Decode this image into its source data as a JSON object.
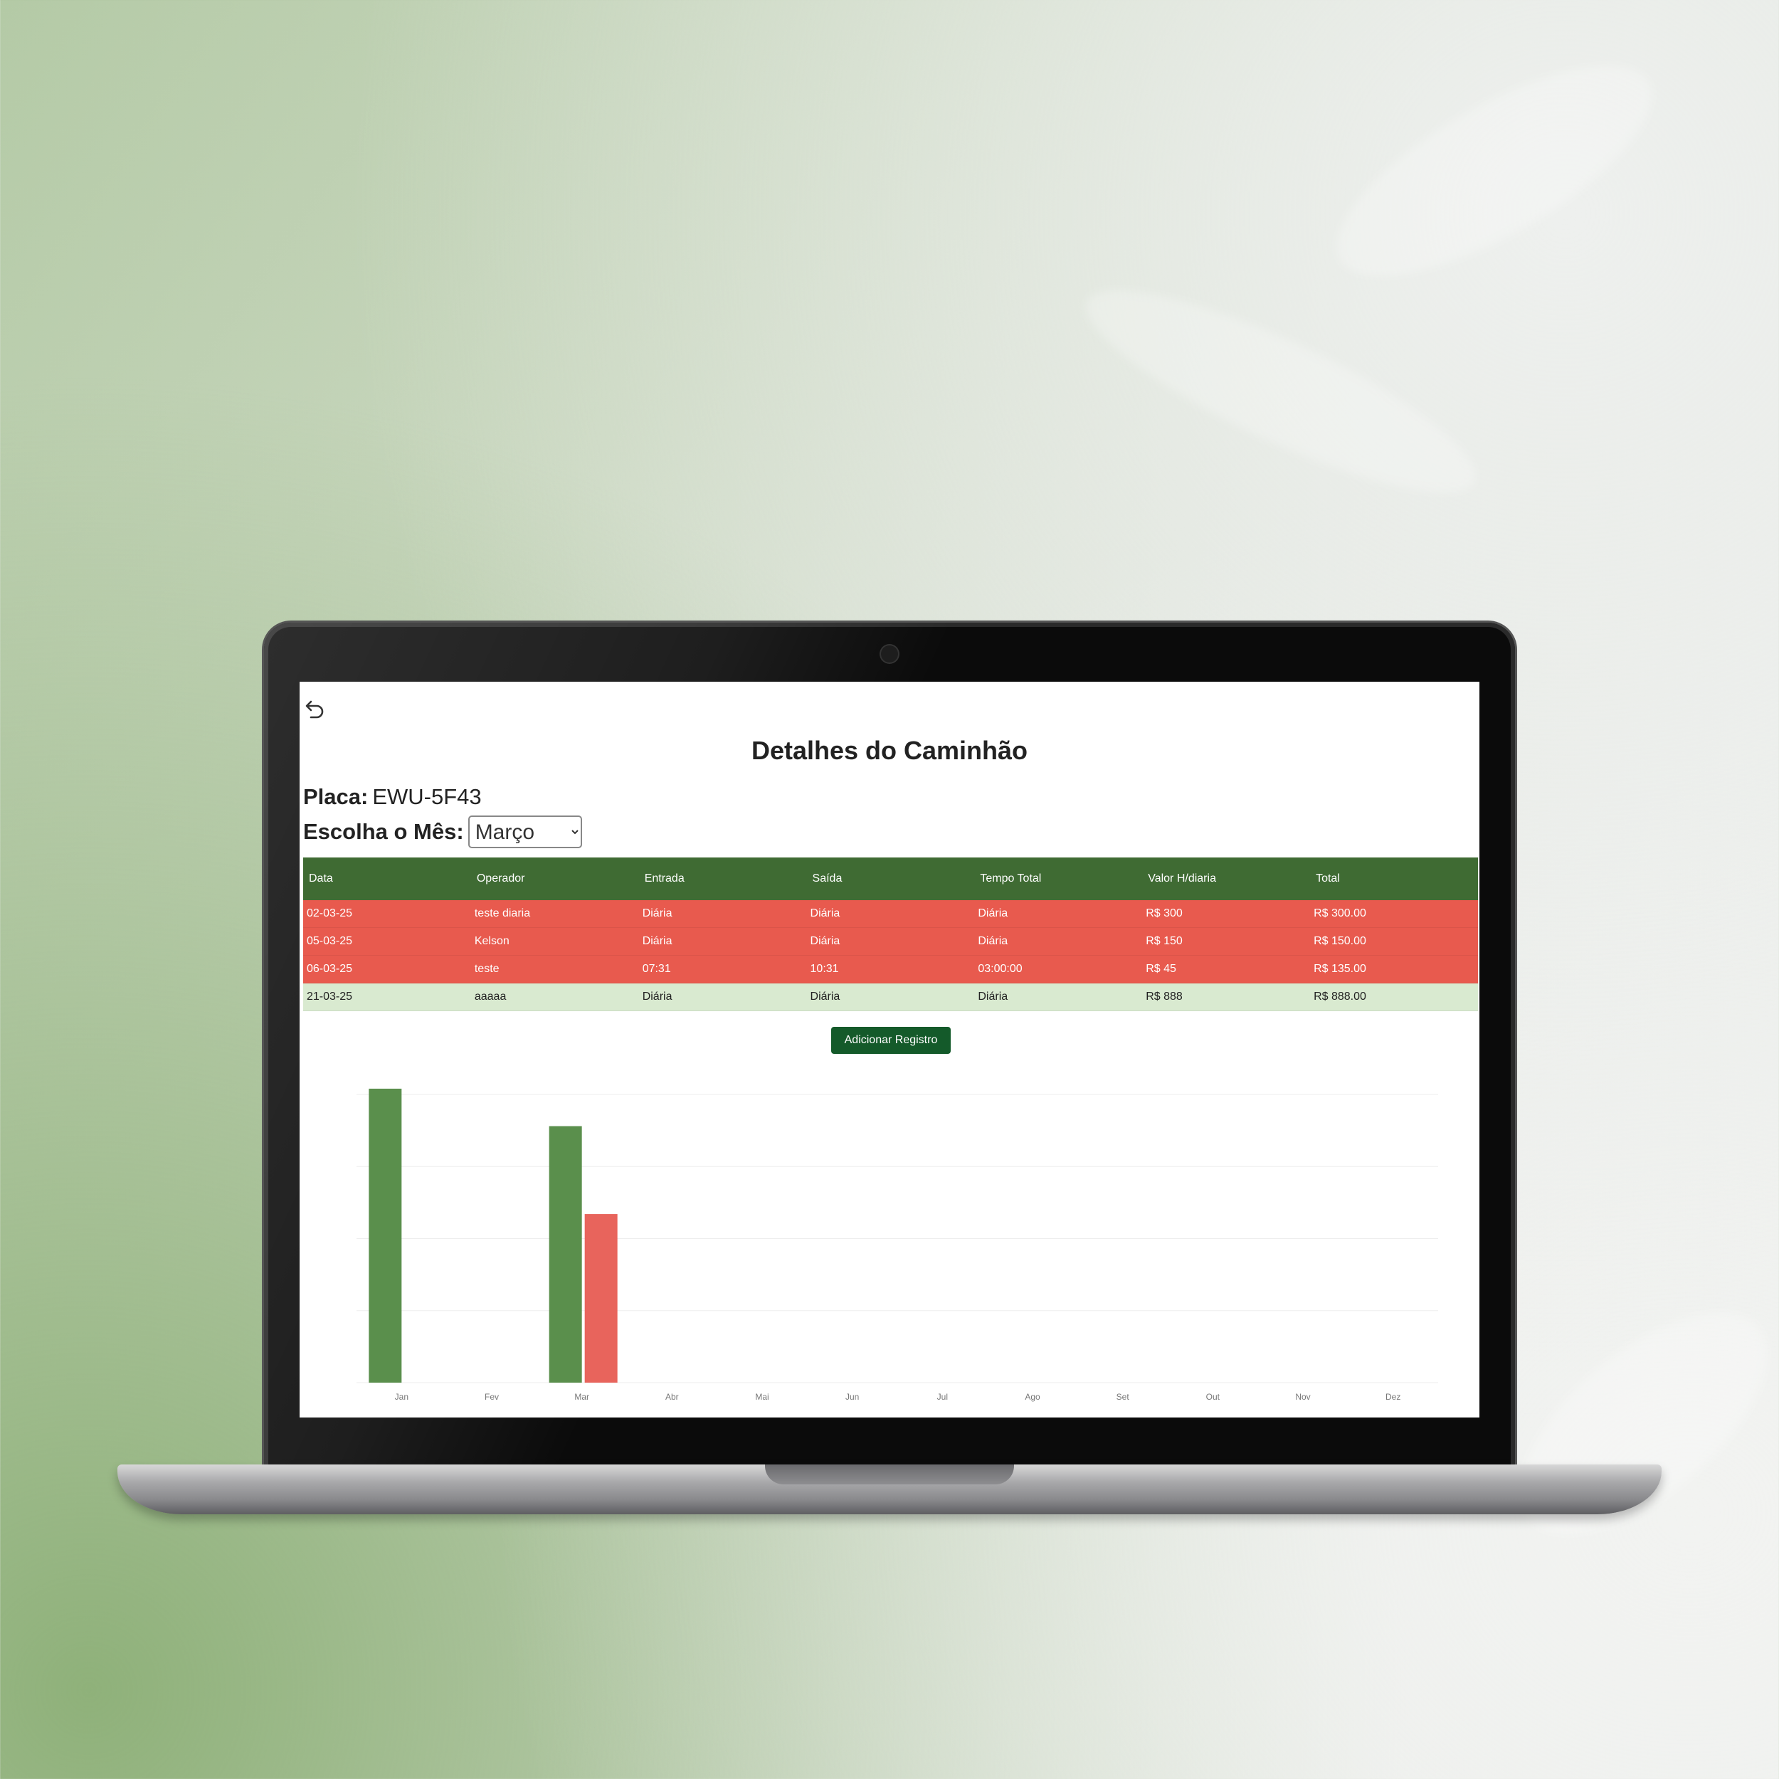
{
  "page": {
    "title": "Detalhes do Caminhão"
  },
  "placa": {
    "label": "Placa:",
    "value": "EWU-5F43"
  },
  "month_picker": {
    "label": "Escolha o Mês:",
    "selected": "Março"
  },
  "table": {
    "columns": [
      "Data",
      "Operador",
      "Entrada",
      "Saída",
      "Tempo Total",
      "Valor H/diaria",
      "Total"
    ],
    "rows": [
      {
        "status": "late",
        "cells": [
          "02-03-25",
          "teste diaria",
          "Diária",
          "Diária",
          "Diária",
          "R$ 300",
          "R$ 300.00"
        ]
      },
      {
        "status": "late",
        "cells": [
          "05-03-25",
          "Kelson",
          "Diária",
          "Diária",
          "Diária",
          "R$ 150",
          "R$ 150.00"
        ]
      },
      {
        "status": "late",
        "cells": [
          "06-03-25",
          "teste",
          "07:31",
          "10:31",
          "03:00:00",
          "R$ 45",
          "R$ 135.00"
        ]
      },
      {
        "status": "ok",
        "cells": [
          "21-03-25",
          "aaaaa",
          "Diária",
          "Diária",
          "Diária",
          "R$ 888",
          "R$ 888.00"
        ]
      }
    ]
  },
  "actions": {
    "add_record_label": "Adicionar Registro"
  },
  "icons": {
    "back": "undo-arrow-icon"
  },
  "colors": {
    "header_green": "#3f6b33",
    "late_red": "#e85a4e",
    "ok_green": "#d9ead0",
    "button_green": "#145a2a",
    "bar_green": "#5a8f4c",
    "bar_red": "#e8645c"
  },
  "chart_data": {
    "type": "bar",
    "categories": [
      "Jan",
      "Fev",
      "Mar",
      "Abr",
      "Mai",
      "Jun",
      "Jul",
      "Ago",
      "Set",
      "Out",
      "Nov",
      "Dez"
    ],
    "series": [
      {
        "values": [
          1020,
          0,
          890,
          0,
          0,
          0,
          0,
          0,
          0,
          0,
          0,
          0
        ]
      },
      {
        "values": [
          0,
          0,
          585,
          0,
          0,
          0,
          0,
          0,
          0,
          0,
          0,
          0
        ]
      }
    ],
    "ylim": [
      0,
      1000
    ],
    "grid": true
  }
}
